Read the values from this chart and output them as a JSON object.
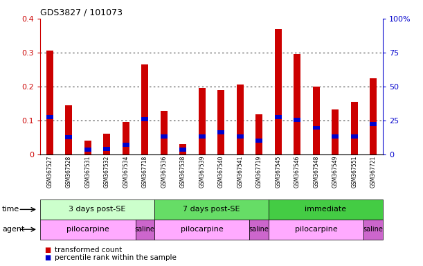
{
  "title": "GDS3827 / 101073",
  "samples": [
    "GSM367527",
    "GSM367528",
    "GSM367531",
    "GSM367532",
    "GSM367534",
    "GSM367718",
    "GSM367536",
    "GSM367538",
    "GSM367539",
    "GSM367540",
    "GSM367541",
    "GSM367719",
    "GSM367545",
    "GSM367546",
    "GSM367548",
    "GSM367549",
    "GSM367551",
    "GSM367721"
  ],
  "red_values": [
    0.305,
    0.145,
    0.04,
    0.06,
    0.095,
    0.265,
    0.128,
    0.03,
    0.195,
    0.19,
    0.205,
    0.118,
    0.37,
    0.295,
    0.2,
    0.132,
    0.155,
    0.225
  ],
  "blue_values": [
    0.11,
    0.05,
    0.013,
    0.015,
    0.028,
    0.103,
    0.053,
    0.013,
    0.053,
    0.065,
    0.053,
    0.04,
    0.11,
    0.102,
    0.078,
    0.053,
    0.053,
    0.09
  ],
  "ylim": [
    0,
    0.4
  ],
  "y2lim": [
    0,
    100
  ],
  "yticks": [
    0,
    0.1,
    0.2,
    0.3,
    0.4
  ],
  "ytick_labels": [
    "0",
    "0.1",
    "0.2",
    "0.3",
    "0.4"
  ],
  "y2ticks": [
    0,
    25,
    50,
    75,
    100
  ],
  "y2tick_labels": [
    "0",
    "25",
    "50",
    "75",
    "100%"
  ],
  "bar_color": "#cc0000",
  "blue_color": "#0000cc",
  "time_groups": [
    {
      "label": "3 days post-SE",
      "start": 0,
      "end": 6,
      "color": "#ccffcc"
    },
    {
      "label": "7 days post-SE",
      "start": 6,
      "end": 12,
      "color": "#66dd66"
    },
    {
      "label": "immediate",
      "start": 12,
      "end": 18,
      "color": "#44cc44"
    }
  ],
  "agent_groups": [
    {
      "label": "pilocarpine",
      "start": 0,
      "end": 5,
      "color": "#ffaaff"
    },
    {
      "label": "saline",
      "start": 5,
      "end": 6,
      "color": "#cc66cc"
    },
    {
      "label": "pilocarpine",
      "start": 6,
      "end": 11,
      "color": "#ffaaff"
    },
    {
      "label": "saline",
      "start": 11,
      "end": 12,
      "color": "#cc66cc"
    },
    {
      "label": "pilocarpine",
      "start": 12,
      "end": 17,
      "color": "#ffaaff"
    },
    {
      "label": "saline",
      "start": 17,
      "end": 18,
      "color": "#cc66cc"
    }
  ],
  "legend_red": "transformed count",
  "legend_blue": "percentile rank within the sample",
  "time_label": "time",
  "agent_label": "agent",
  "left_axis_color": "#cc0000",
  "right_axis_color": "#0000cc",
  "background_color": "#ffffff"
}
